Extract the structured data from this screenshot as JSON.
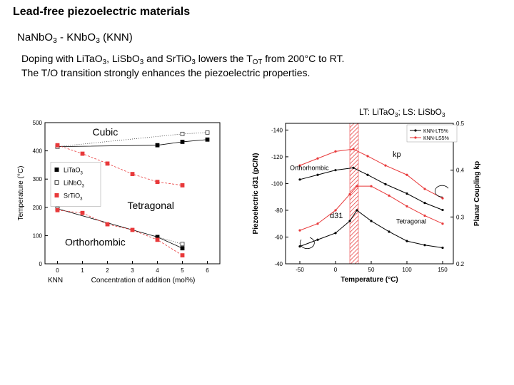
{
  "slide": {
    "title": "Lead-free piezoelectric materials",
    "subtitle": {
      "a": "Na",
      "b": "Nb",
      "c": "O",
      "d": "3",
      "e": " - KNb",
      "f": "O",
      "g": "3",
      "h": "  (KNN)"
    },
    "line1": {
      "a": "Doping with Li",
      "b": "Ta",
      "c": "O",
      "d": "3",
      "e": ", Li",
      "f": "Sb",
      "g": "O",
      "h": "3",
      "i": " and Sr",
      "j": "Ti",
      "k": "O",
      "l": "3",
      "m": " lowers the T",
      "n": "OT",
      "o": " from 200°C to RT."
    },
    "line2": "The T/O transition strongly enhances the piezoelectric properties.",
    "note": {
      "a": "LT: Li",
      "b": "Ta",
      "c": "O",
      "d": "3",
      "e": "; LS: Li",
      "f": "Sb",
      "g": "O",
      "h": "3"
    }
  },
  "chart_data": [
    {
      "type": "scatter",
      "xlabel": "Concentration of addition (mol%)",
      "x_prefix_label": "KNN",
      "ylabel": "Temperature (°C)",
      "xlim": [
        -0.5,
        6.5
      ],
      "ylim": [
        0,
        500
      ],
      "xticks": [
        "0",
        "1",
        "2",
        "3",
        "4",
        "5",
        "6"
      ],
      "yticks": [
        "0",
        "100",
        "200",
        "300",
        "400",
        "500"
      ],
      "region_labels": [
        "Cubic",
        "Tetragonal",
        "Orthorhombic"
      ],
      "legend": [
        "LiTaO3",
        "LiNbO3",
        "SrTiO3"
      ],
      "colors": {
        "LiTaO3": "#000000",
        "LiNbO3": "#333333",
        "SrTiO3": "#e8393a"
      },
      "series": [
        {
          "name": "LiTaO3 (cubic)",
          "marker": "filled-square",
          "color": "#000000",
          "x": [
            0,
            4,
            5,
            6
          ],
          "y": [
            415,
            420,
            432,
            440
          ]
        },
        {
          "name": "LiNbO3 (cubic)",
          "marker": "open-square",
          "color": "#333333",
          "x": [
            0,
            5,
            6
          ],
          "y": [
            415,
            460,
            465
          ]
        },
        {
          "name": "SrTiO3 (cubic)",
          "marker": "red-square",
          "color": "#e8393a",
          "x": [
            0,
            1,
            2,
            3,
            4,
            5
          ],
          "y": [
            420,
            390,
            355,
            318,
            290,
            278
          ]
        },
        {
          "name": "LiTaO3 (tetragonal)",
          "marker": "filled-square",
          "color": "#000000",
          "x": [
            0,
            4,
            5
          ],
          "y": [
            195,
            95,
            55
          ]
        },
        {
          "name": "LiNbO3 (tetragonal)",
          "marker": "open-square",
          "color": "#333333",
          "x": [
            0,
            5
          ],
          "y": [
            195,
            70
          ]
        },
        {
          "name": "SrTiO3 (tetragonal)",
          "marker": "red-square",
          "color": "#e8393a",
          "x": [
            0,
            1,
            2,
            3,
            4,
            5
          ],
          "y": [
            190,
            180,
            140,
            120,
            85,
            30
          ]
        }
      ]
    },
    {
      "type": "line",
      "xlabel": "Temperature (°C)",
      "ylabel_left": "Piezoelectric d31 (pC/N)",
      "ylabel_right": "Planar Coupling kp",
      "xlim": [
        -70,
        165
      ],
      "ylim_left": [
        -40,
        -145
      ],
      "ylim_right": [
        0.2,
        0.5
      ],
      "xticks": [
        "-50",
        "0",
        "50",
        "100",
        "150"
      ],
      "yticks_left": [
        "-140",
        "-120",
        "-100",
        "-80",
        "-60",
        "-40"
      ],
      "yticks_right": [
        "0.5",
        "0.4",
        "0.3",
        "0.2"
      ],
      "band": [
        20,
        32
      ],
      "legend": [
        "KNN-LT5%",
        "KNN-LS5%"
      ],
      "annotations": [
        "kp",
        "d31",
        "Orthorhombic",
        "Tetragonal"
      ],
      "series": [
        {
          "name": "KNN-LT5% kp",
          "color": "#000000",
          "x": [
            -50,
            -25,
            0,
            25,
            45,
            70,
            100,
            125,
            150
          ],
          "y": [
            0.38,
            0.39,
            0.4,
            0.405,
            0.39,
            0.37,
            0.35,
            0.33,
            0.315
          ]
        },
        {
          "name": "KNN-LS5% kp",
          "color": "#e8393a",
          "x": [
            -50,
            -25,
            0,
            25,
            45,
            70,
            100,
            125,
            150
          ],
          "y": [
            0.41,
            0.425,
            0.44,
            0.445,
            0.43,
            0.41,
            0.39,
            0.36,
            0.34
          ]
        },
        {
          "name": "KNN-LT5% d31",
          "color": "#000000",
          "x": [
            -50,
            -25,
            0,
            20,
            30,
            50,
            75,
            100,
            125,
            150
          ],
          "y": [
            -53,
            -58,
            -63,
            -72,
            -80,
            -72,
            -64,
            -57,
            -54,
            -52
          ]
        },
        {
          "name": "KNN-LS5% d31",
          "color": "#e8393a",
          "x": [
            -50,
            -25,
            0,
            20,
            30,
            50,
            75,
            100,
            125,
            150
          ],
          "y": [
            -65,
            -70,
            -80,
            -92,
            -98,
            -98,
            -91,
            -83,
            -76,
            -70
          ]
        }
      ]
    }
  ]
}
